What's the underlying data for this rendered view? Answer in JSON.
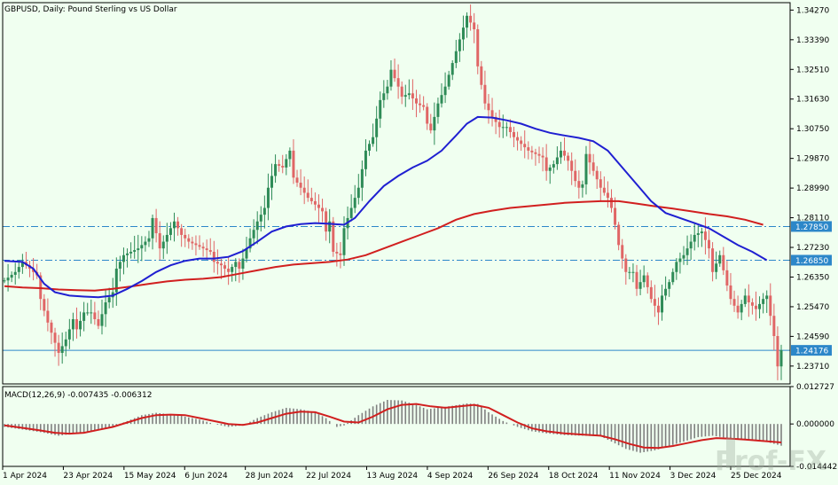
{
  "chart_data": {
    "type": "candlestick",
    "title": "GBPUSD, Daily:  Pound Sterling vs US Dollar",
    "price_axis": {
      "ticks": [
        "1.34270",
        "1.33390",
        "1.32510",
        "1.31630",
        "1.30750",
        "1.29870",
        "1.28990",
        "1.28110",
        "1.27230",
        "1.26350",
        "1.25470",
        "1.24590",
        "1.23710"
      ],
      "ylim": [
        1.2318,
        1.3449
      ],
      "level_labels": [
        "1.27850",
        "1.26850"
      ],
      "current_label": "1.24176"
    },
    "horizontal_levels": [
      1.2785,
      1.2685,
      1.24176
    ],
    "x_labels": [
      "1 Apr 2024",
      "23 Apr 2024",
      "15 May 2024",
      "6 Jun 2024",
      "28 Jun 2024",
      "22 Jul 2024",
      "13 Aug 2024",
      "4 Sep 2024",
      "26 Sep 2024",
      "18 Oct 2024",
      "11 Nov 2024",
      "3 Dec 2024",
      "25 Dec 2024"
    ],
    "close_path": [
      [
        0,
        1.2625
      ],
      [
        3,
        1.265
      ],
      [
        5,
        1.268
      ],
      [
        7,
        1.266
      ],
      [
        9,
        1.264
      ],
      [
        10,
        1.257
      ],
      [
        12,
        1.25
      ],
      [
        14,
        1.244
      ],
      [
        15,
        1.241
      ],
      [
        17,
        1.245
      ],
      [
        19,
        1.251
      ],
      [
        20,
        1.248
      ],
      [
        22,
        1.253
      ],
      [
        24,
        1.253
      ],
      [
        26,
        1.249
      ],
      [
        28,
        1.256
      ],
      [
        30,
        1.259
      ],
      [
        31,
        1.266
      ],
      [
        33,
        1.27
      ],
      [
        35,
        1.271
      ],
      [
        37,
        1.272
      ],
      [
        39,
        1.274
      ],
      [
        40,
        1.275
      ],
      [
        41,
        1.281
      ],
      [
        43,
        1.272
      ],
      [
        45,
        1.276
      ],
      [
        47,
        1.28
      ],
      [
        49,
        1.276
      ],
      [
        51,
        1.274
      ],
      [
        53,
        1.273
      ],
      [
        55,
        1.272
      ],
      [
        57,
        1.271
      ],
      [
        58,
        1.268
      ],
      [
        60,
        1.267
      ],
      [
        62,
        1.265
      ],
      [
        64,
        1.268
      ],
      [
        65,
        1.266
      ],
      [
        66,
        1.269
      ],
      [
        68,
        1.275
      ],
      [
        70,
        1.28
      ],
      [
        72,
        1.284
      ],
      [
        73,
        1.29
      ],
      [
        75,
        1.297
      ],
      [
        77,
        1.296
      ],
      [
        79,
        1.301
      ],
      [
        80,
        1.293
      ],
      [
        82,
        1.29
      ],
      [
        84,
        1.287
      ],
      [
        86,
        1.285
      ],
      [
        88,
        1.283
      ],
      [
        89,
        1.277
      ],
      [
        90,
        1.28
      ],
      [
        91,
        1.271
      ],
      [
        93,
        1.27
      ],
      [
        94,
        1.278
      ],
      [
        96,
        1.284
      ],
      [
        98,
        1.29
      ],
      [
        100,
        1.301
      ],
      [
        102,
        1.305
      ],
      [
        104,
        1.316
      ],
      [
        106,
        1.32
      ],
      [
        107,
        1.325
      ],
      [
        109,
        1.32
      ],
      [
        110,
        1.317
      ],
      [
        112,
        1.318
      ],
      [
        114,
        1.315
      ],
      [
        116,
        1.314
      ],
      [
        117,
        1.309
      ],
      [
        118,
        1.307
      ],
      [
        120,
        1.315
      ],
      [
        122,
        1.32
      ],
      [
        124,
        1.327
      ],
      [
        126,
        1.334
      ],
      [
        128,
        1.341
      ],
      [
        130,
        1.337
      ],
      [
        131,
        1.326
      ],
      [
        133,
        1.315
      ],
      [
        135,
        1.311
      ],
      [
        137,
        1.308
      ],
      [
        139,
        1.308
      ],
      [
        141,
        1.305
      ],
      [
        143,
        1.303
      ],
      [
        145,
        1.301
      ],
      [
        147,
        1.3
      ],
      [
        149,
        1.299
      ],
      [
        150,
        1.295
      ],
      [
        152,
        1.297
      ],
      [
        154,
        1.301
      ],
      [
        156,
        1.298
      ],
      [
        158,
        1.292
      ],
      [
        159,
        1.29
      ],
      [
        160,
        1.291
      ],
      [
        161,
        1.3
      ],
      [
        163,
        1.295
      ],
      [
        165,
        1.29
      ],
      [
        167,
        1.287
      ],
      [
        168,
        1.284
      ],
      [
        169,
        1.279
      ],
      [
        170,
        1.273
      ],
      [
        172,
        1.265
      ],
      [
        174,
        1.265
      ],
      [
        175,
        1.26
      ],
      [
        177,
        1.264
      ],
      [
        179,
        1.257
      ],
      [
        181,
        1.253
      ],
      [
        182,
        1.258
      ],
      [
        184,
        1.262
      ],
      [
        186,
        1.268
      ],
      [
        188,
        1.27
      ],
      [
        189,
        1.272
      ],
      [
        191,
        1.276
      ],
      [
        193,
        1.277
      ],
      [
        195,
        1.272
      ],
      [
        196,
        1.265
      ],
      [
        198,
        1.27
      ],
      [
        200,
        1.261
      ],
      [
        201,
        1.257
      ],
      [
        203,
        1.253
      ],
      [
        205,
        1.258
      ],
      [
        206,
        1.256
      ],
      [
        208,
        1.254
      ],
      [
        210,
        1.257
      ],
      [
        211,
        1.258
      ],
      [
        213,
        1.246
      ],
      [
        214,
        1.237
      ],
      [
        215,
        1.2418
      ]
    ],
    "ma_fast": [
      [
        0,
        1.2683
      ],
      [
        5,
        1.268
      ],
      [
        8,
        1.266
      ],
      [
        11,
        1.2615
      ],
      [
        14,
        1.259
      ],
      [
        18,
        1.258
      ],
      [
        22,
        1.2577
      ],
      [
        26,
        1.2575
      ],
      [
        30,
        1.258
      ],
      [
        34,
        1.26
      ],
      [
        38,
        1.2623
      ],
      [
        42,
        1.265
      ],
      [
        46,
        1.267
      ],
      [
        50,
        1.2683
      ],
      [
        54,
        1.269
      ],
      [
        58,
        1.269
      ],
      [
        62,
        1.2695
      ],
      [
        66,
        1.2712
      ],
      [
        70,
        1.274
      ],
      [
        74,
        1.277
      ],
      [
        78,
        1.2785
      ],
      [
        82,
        1.2792
      ],
      [
        86,
        1.2795
      ],
      [
        90,
        1.2793
      ],
      [
        94,
        1.279
      ],
      [
        97,
        1.281
      ],
      [
        101,
        1.286
      ],
      [
        105,
        1.2905
      ],
      [
        109,
        1.2935
      ],
      [
        113,
        1.296
      ],
      [
        117,
        1.298
      ],
      [
        121,
        1.301
      ],
      [
        125,
        1.3055
      ],
      [
        128,
        1.309
      ],
      [
        131,
        1.311
      ],
      [
        135,
        1.3108
      ],
      [
        139,
        1.31
      ],
      [
        143,
        1.309
      ],
      [
        147,
        1.3075
      ],
      [
        151,
        1.3063
      ],
      [
        155,
        1.3055
      ],
      [
        159,
        1.3048
      ],
      [
        163,
        1.3038
      ],
      [
        167,
        1.301
      ],
      [
        171,
        1.296
      ],
      [
        175,
        1.291
      ],
      [
        179,
        1.286
      ],
      [
        183,
        1.2825
      ],
      [
        187,
        1.281
      ],
      [
        191,
        1.2795
      ],
      [
        195,
        1.278
      ],
      [
        199,
        1.2755
      ],
      [
        203,
        1.273
      ],
      [
        207,
        1.271
      ],
      [
        211,
        1.2685
      ]
    ],
    "ma_slow": [
      [
        0,
        1.2608
      ],
      [
        5,
        1.2604
      ],
      [
        10,
        1.2602
      ],
      [
        15,
        1.2598
      ],
      [
        20,
        1.2596
      ],
      [
        25,
        1.2595
      ],
      [
        30,
        1.26
      ],
      [
        35,
        1.2607
      ],
      [
        40,
        1.2615
      ],
      [
        45,
        1.2622
      ],
      [
        50,
        1.2627
      ],
      [
        55,
        1.263
      ],
      [
        60,
        1.2635
      ],
      [
        65,
        1.2645
      ],
      [
        70,
        1.2655
      ],
      [
        75,
        1.2665
      ],
      [
        80,
        1.2672
      ],
      [
        85,
        1.2676
      ],
      [
        90,
        1.268
      ],
      [
        95,
        1.2687
      ],
      [
        100,
        1.27
      ],
      [
        105,
        1.272
      ],
      [
        110,
        1.274
      ],
      [
        115,
        1.276
      ],
      [
        120,
        1.278
      ],
      [
        125,
        1.2805
      ],
      [
        130,
        1.2822
      ],
      [
        135,
        1.2832
      ],
      [
        140,
        1.284
      ],
      [
        145,
        1.2845
      ],
      [
        150,
        1.285
      ],
      [
        155,
        1.2855
      ],
      [
        160,
        1.2858
      ],
      [
        165,
        1.286
      ],
      [
        170,
        1.286
      ],
      [
        175,
        1.2853
      ],
      [
        180,
        1.2845
      ],
      [
        185,
        1.2838
      ],
      [
        190,
        1.283
      ],
      [
        195,
        1.2822
      ],
      [
        200,
        1.2815
      ],
      [
        205,
        1.2805
      ],
      [
        210,
        1.279
      ]
    ],
    "macd": {
      "label": "MACD(12,26,9) -0.007435 -0.006312",
      "ticks": [
        "0.012727",
        "0.000000",
        "-0.014442"
      ],
      "ylim": [
        -0.01444,
        0.01273
      ],
      "histogram": [
        [
          0,
          -0.001
        ],
        [
          10,
          -0.0028
        ],
        [
          15,
          -0.004
        ],
        [
          20,
          -0.0032
        ],
        [
          26,
          -0.002
        ],
        [
          30,
          -0.0008
        ],
        [
          34,
          0.001
        ],
        [
          38,
          0.003
        ],
        [
          42,
          0.0038
        ],
        [
          48,
          0.003
        ],
        [
          54,
          0.0015
        ],
        [
          58,
          0.0
        ],
        [
          62,
          -0.001
        ],
        [
          66,
          -0.0005
        ],
        [
          70,
          0.002
        ],
        [
          74,
          0.004
        ],
        [
          78,
          0.0055
        ],
        [
          82,
          0.005
        ],
        [
          86,
          0.004
        ],
        [
          89,
          0.002
        ],
        [
          92,
          -0.001
        ],
        [
          94,
          -0.0005
        ],
        [
          98,
          0.003
        ],
        [
          102,
          0.006
        ],
        [
          106,
          0.0082
        ],
        [
          110,
          0.008
        ],
        [
          114,
          0.0065
        ],
        [
          117,
          0.005
        ],
        [
          120,
          0.0055
        ],
        [
          124,
          0.0062
        ],
        [
          128,
          0.007
        ],
        [
          131,
          0.0068
        ],
        [
          134,
          0.004
        ],
        [
          138,
          0.001
        ],
        [
          142,
          -0.001
        ],
        [
          146,
          -0.0025
        ],
        [
          150,
          -0.0032
        ],
        [
          155,
          -0.0038
        ],
        [
          160,
          -0.004
        ],
        [
          165,
          -0.0042
        ],
        [
          168,
          -0.006
        ],
        [
          172,
          -0.0085
        ],
        [
          176,
          -0.0098
        ],
        [
          180,
          -0.009
        ],
        [
          184,
          -0.0075
        ],
        [
          188,
          -0.006
        ],
        [
          192,
          -0.0045
        ],
        [
          196,
          -0.004
        ],
        [
          200,
          -0.0048
        ],
        [
          205,
          -0.0055
        ],
        [
          210,
          -0.0058
        ],
        [
          215,
          -0.0074
        ]
      ],
      "signal": [
        [
          0,
          -0.0005
        ],
        [
          6,
          -0.0015
        ],
        [
          10,
          -0.0022
        ],
        [
          14,
          -0.003
        ],
        [
          18,
          -0.0033
        ],
        [
          22,
          -0.003
        ],
        [
          26,
          -0.002
        ],
        [
          30,
          -0.001
        ],
        [
          34,
          0.0005
        ],
        [
          38,
          0.002
        ],
        [
          42,
          0.003
        ],
        [
          46,
          0.0032
        ],
        [
          50,
          0.003
        ],
        [
          54,
          0.002
        ],
        [
          58,
          0.001
        ],
        [
          62,
          0.0
        ],
        [
          66,
          -0.0003
        ],
        [
          70,
          0.0005
        ],
        [
          74,
          0.002
        ],
        [
          78,
          0.0035
        ],
        [
          82,
          0.0042
        ],
        [
          86,
          0.004
        ],
        [
          90,
          0.0025
        ],
        [
          94,
          0.0008
        ],
        [
          98,
          0.0005
        ],
        [
          102,
          0.0025
        ],
        [
          106,
          0.005
        ],
        [
          110,
          0.0065
        ],
        [
          114,
          0.0068
        ],
        [
          118,
          0.006
        ],
        [
          122,
          0.0055
        ],
        [
          126,
          0.006
        ],
        [
          130,
          0.0065
        ],
        [
          134,
          0.0055
        ],
        [
          138,
          0.003
        ],
        [
          142,
          0.0005
        ],
        [
          146,
          -0.0015
        ],
        [
          150,
          -0.0025
        ],
        [
          155,
          -0.0032
        ],
        [
          160,
          -0.0036
        ],
        [
          165,
          -0.004
        ],
        [
          169,
          -0.0052
        ],
        [
          173,
          -0.0068
        ],
        [
          177,
          -0.008
        ],
        [
          181,
          -0.0082
        ],
        [
          185,
          -0.0075
        ],
        [
          189,
          -0.0065
        ],
        [
          193,
          -0.0055
        ],
        [
          197,
          -0.0048
        ],
        [
          201,
          -0.005
        ],
        [
          205,
          -0.0053
        ],
        [
          210,
          -0.0058
        ],
        [
          215,
          -0.0063
        ]
      ]
    },
    "colors": {
      "background": "#f0fff0",
      "bull": "#2e8b57",
      "bear": "#e06666",
      "ma_fast": "#1f1fd1",
      "ma_slow": "#d11f1f",
      "level_line": "#2c87c9",
      "label_bg": "#2c87c9",
      "histogram": "#808080",
      "signal": "#d11f1f"
    }
  },
  "watermark": "Prof-FX"
}
